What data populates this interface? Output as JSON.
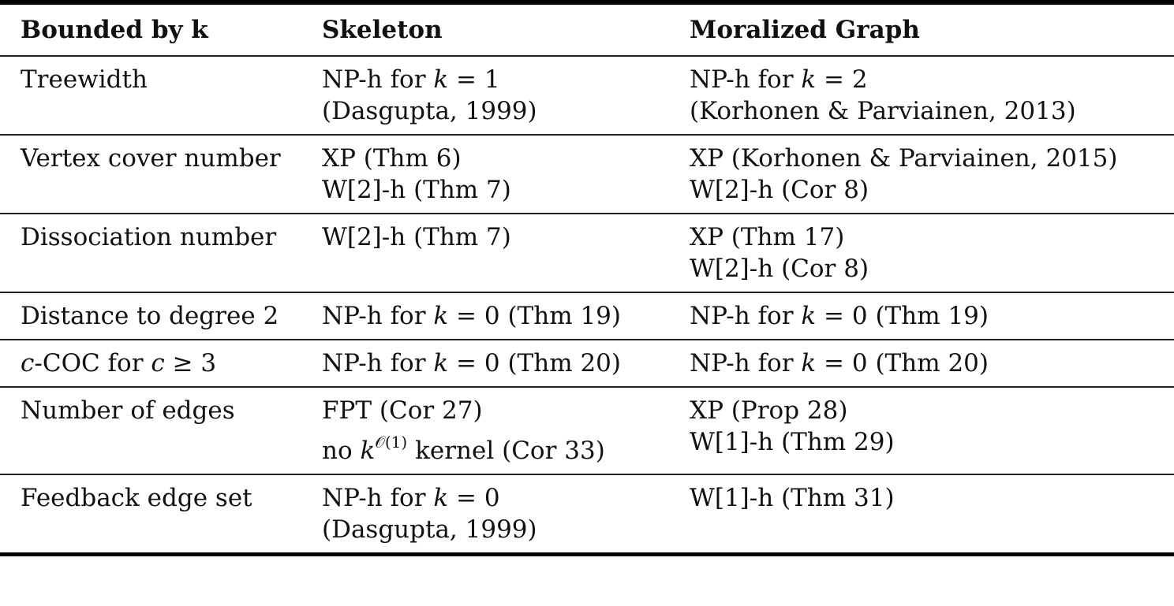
{
  "table": {
    "headers": [
      "Bounded by k",
      "Skeleton",
      "Moralized Graph"
    ],
    "rows": [
      {
        "param": "Treewidth",
        "skeleton": [
          "NP-h for k = 1",
          "(Dasgupta, 1999)"
        ],
        "moralized": [
          "NP-h for k = 2",
          "(Korhonen & Parviainen, 2013)"
        ]
      },
      {
        "param": "Vertex cover number",
        "skeleton": [
          "XP (Thm 6)",
          "W[2]-h (Thm 7)"
        ],
        "moralized": [
          "XP (Korhonen & Parviainen, 2015)",
          "W[2]-h (Cor 8)"
        ]
      },
      {
        "param": "Dissociation number",
        "skeleton": [
          "W[2]-h (Thm 7)"
        ],
        "moralized": [
          "XP (Thm 17)",
          "W[2]-h (Cor 8)"
        ]
      },
      {
        "param": "Distance to degree 2",
        "skeleton": [
          "NP-h for k = 0 (Thm 19)"
        ],
        "moralized": [
          "NP-h for k = 0 (Thm 19)"
        ]
      },
      {
        "param": "c-COC for c ≥ 3",
        "skeleton": [
          "NP-h for k = 0 (Thm 20)"
        ],
        "moralized": [
          "NP-h for k = 0 (Thm 20)"
        ]
      },
      {
        "param": "Number of edges",
        "skeleton": [
          "FPT (Cor 27)",
          "no k^O(1) kernel (Cor 33)"
        ],
        "moralized": [
          "XP (Prop 28)",
          "W[1]-h (Thm 29)"
        ]
      },
      {
        "param": "Feedback edge set",
        "skeleton": [
          "NP-h for k = 0",
          "(Dasgupta, 1999)"
        ],
        "moralized": [
          "W[1]-h (Thm 31)"
        ]
      }
    ]
  },
  "parts": {
    "nph": "NP-h for ",
    "k": "k",
    "eq1": " = 1",
    "eq2": " = 2",
    "eq0": " = 0",
    "thm19": " = 0 (Thm 19)",
    "thm20": " = 0 (Thm 20)",
    "c": "c",
    "coc": "-COC for ",
    "ge3": " ≥ 3",
    "no": "no ",
    "sup": "𝒪(1)",
    "kernel": " kernel (Cor 33)"
  }
}
